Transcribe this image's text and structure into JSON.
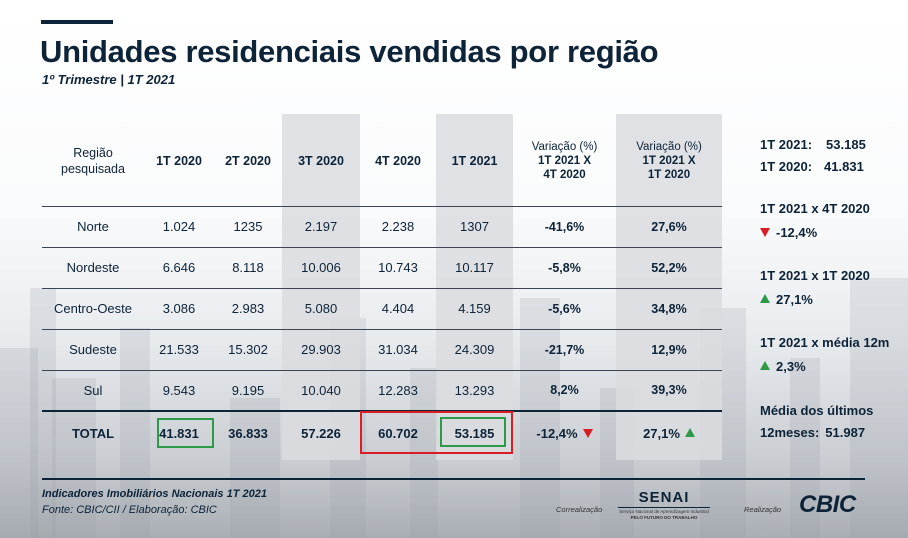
{
  "header": {
    "title": "Unidades residenciais vendidas por região",
    "subtitle": "1º Trimestre | 1T 2021"
  },
  "table": {
    "columns": [
      "Região\npesquisada",
      "1T 2020",
      "2T 2020",
      "3T 2020",
      "4T 2020",
      "1T 2021",
      {
        "top": "Variação (%)",
        "bottom": "1T 2021 X\n4T 2020"
      },
      {
        "top": "Variação (%)",
        "bottom": "1T 2021 X\n1T 2020"
      }
    ],
    "rows": [
      [
        "Norte",
        "1.024",
        "1235",
        "2.197",
        "2.238",
        "1307",
        "-41,6%",
        "27,6%"
      ],
      [
        "Nordeste",
        "6.646",
        "8.118",
        "10.006",
        "10.743",
        "10.117",
        "-5,8%",
        "52,2%"
      ],
      [
        "Centro-Oeste",
        "3.086",
        "2.983",
        "5.080",
        "4.404",
        "4.159",
        "-5,6%",
        "34,8%"
      ],
      [
        "Sudeste",
        "21.533",
        "15.302",
        "29.903",
        "31.034",
        "24.309",
        "-21,7%",
        "12,9%"
      ],
      [
        "Sul",
        "9.543",
        "9.195",
        "10.040",
        "12.283",
        "13.293",
        "8,2%",
        "39,3%"
      ]
    ],
    "total": [
      "TOTAL",
      "41.831",
      "36.833",
      "57.226",
      "60.702",
      "53.185",
      "-12,4%",
      "27,1%"
    ],
    "total_trend": [
      "down",
      "up"
    ]
  },
  "sidebar": {
    "q2021_label": "1T 2021:",
    "q2021_value": "53.185",
    "q2020_label": "1T 2020:",
    "q2020_value": "41.831",
    "comp1_label": "1T 2021 x 4T 2020",
    "comp1_value": "-12,4%",
    "comp2_label": "1T 2021 x 1T 2020",
    "comp2_value": "27,1%",
    "comp3_label": "1T 2021 x média 12m",
    "comp3_value": "2,3%",
    "avg_label_1": "Média dos últimos",
    "avg_label_2": "12meses:",
    "avg_value": "51.987"
  },
  "footer": {
    "line1": "Indicadores Imobiliários Nacionais 1T 2021",
    "line2": "Fonte: CBIC/CII / Elaboração: CBIC",
    "corr_label": "Correalização",
    "real_label": "Realização",
    "senai_logo": "SENAI",
    "senai_tag1": "Serviço Nacional de Aprendizagem Industrial",
    "senai_tag2": "PELO FUTURO DO TRABALHO",
    "cbic_logo": "CBIC"
  },
  "colors": {
    "navy": "#0d2338",
    "red": "#d81e24",
    "green": "#2e9a48",
    "shade": "#dadcdf"
  }
}
